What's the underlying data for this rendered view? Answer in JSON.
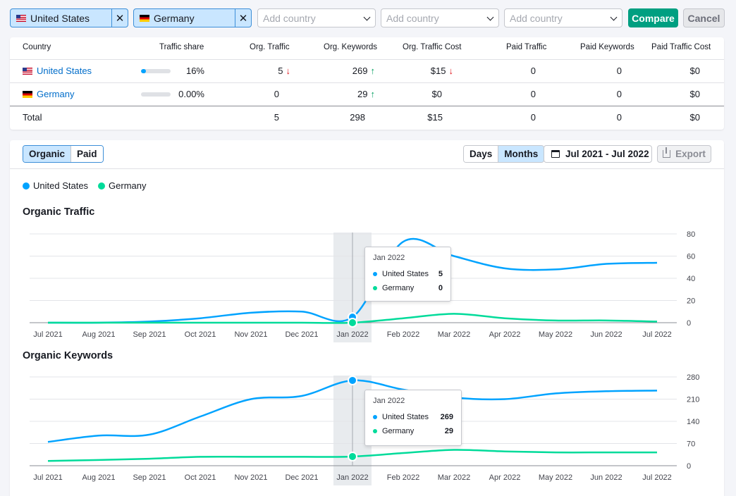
{
  "filters": {
    "selected": [
      {
        "country": "United States",
        "flag": "us-flag-icon"
      },
      {
        "country": "Germany",
        "flag": "de-flag-icon"
      }
    ],
    "add_placeholder": "Add country",
    "compare_label": "Compare",
    "cancel_label": "Cancel"
  },
  "table": {
    "headers": [
      "Country",
      "Traffic share",
      "Org. Traffic",
      "Org. Keywords",
      "Org. Traffic Cost",
      "Paid Traffic",
      "Paid Keywords",
      "Paid Traffic Cost"
    ],
    "rows": [
      {
        "country": "United States",
        "share_pct": 16,
        "share": "16%",
        "org_traffic": "5",
        "org_traffic_trend": "down",
        "org_keywords": "269",
        "org_keywords_trend": "up",
        "org_cost": "$15",
        "org_cost_trend": "down",
        "paid_traffic": "0",
        "paid_keywords": "0",
        "paid_cost": "$0"
      },
      {
        "country": "Germany",
        "share_pct": 0,
        "share": "0.00%",
        "org_traffic": "0",
        "org_keywords": "29",
        "org_keywords_trend": "up",
        "org_cost": "$0",
        "paid_traffic": "0",
        "paid_keywords": "0",
        "paid_cost": "$0"
      }
    ],
    "total": {
      "label": "Total",
      "org_traffic": "5",
      "org_keywords": "298",
      "org_cost": "$15",
      "paid_traffic": "0",
      "paid_keywords": "0",
      "paid_cost": "$0"
    }
  },
  "chart_panel": {
    "tabs": [
      "Organic",
      "Paid"
    ],
    "active_tab": "Organic",
    "granularity": [
      "Days",
      "Months"
    ],
    "active_granularity": "Months",
    "date_range": "Jul 2021 - Jul 2022",
    "export_label": "Export"
  },
  "colors": {
    "us": "#00a3ff",
    "de": "#00db9a",
    "accent": "#009f81"
  },
  "chart_data": [
    {
      "type": "line",
      "title": "Organic Traffic",
      "categories": [
        "Jul 2021",
        "Aug 2021",
        "Sep 2021",
        "Oct 2021",
        "Nov 2021",
        "Dec 2021",
        "Jan 2022",
        "Feb 2022",
        "Mar 2022",
        "Apr 2022",
        "May 2022",
        "Jun 2022",
        "Jul 2022"
      ],
      "series": [
        {
          "name": "United States",
          "values": [
            0,
            0,
            1,
            4,
            9,
            10,
            5,
            73,
            60,
            49,
            48,
            53,
            54
          ]
        },
        {
          "name": "Germany",
          "values": [
            0,
            0,
            0,
            0,
            0,
            0,
            0,
            4,
            8,
            4,
            2,
            2,
            1
          ]
        }
      ],
      "yticks": [
        0,
        20,
        40,
        60,
        80
      ],
      "ylim": [
        0,
        80
      ],
      "highlight": "Jan 2022",
      "tooltip": {
        "date": "Jan 2022",
        "rows": [
          {
            "name": "United States",
            "value": "5"
          },
          {
            "name": "Germany",
            "value": "0"
          }
        ]
      }
    },
    {
      "type": "line",
      "title": "Organic Keywords",
      "categories": [
        "Jul 2021",
        "Aug 2021",
        "Sep 2021",
        "Oct 2021",
        "Nov 2021",
        "Dec 2021",
        "Jan 2022",
        "Feb 2022",
        "Mar 2022",
        "Apr 2022",
        "May 2022",
        "Jun 2022",
        "Jul 2022"
      ],
      "series": [
        {
          "name": "United States",
          "values": [
            75,
            95,
            98,
            155,
            210,
            220,
            269,
            240,
            215,
            210,
            228,
            235,
            237
          ]
        },
        {
          "name": "Germany",
          "values": [
            15,
            18,
            22,
            28,
            28,
            28,
            29,
            40,
            50,
            45,
            42,
            42,
            42
          ]
        }
      ],
      "yticks": [
        0,
        70,
        140,
        210,
        280
      ],
      "ylim": [
        0,
        280
      ],
      "highlight": "Jan 2022",
      "tooltip": {
        "date": "Jan 2022",
        "rows": [
          {
            "name": "United States",
            "value": "269"
          },
          {
            "name": "Germany",
            "value": "29"
          }
        ]
      }
    }
  ]
}
